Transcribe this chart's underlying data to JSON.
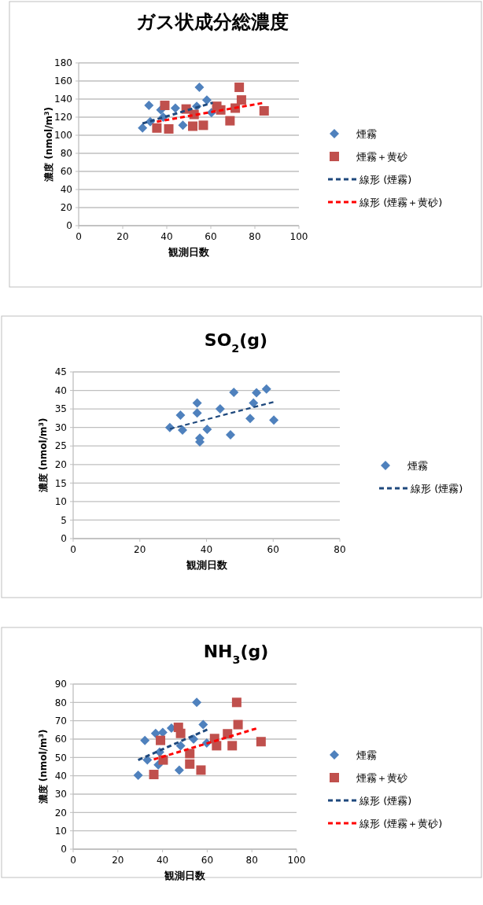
{
  "chart_data": [
    {
      "type": "scatter",
      "title": "ガス状成分総濃度",
      "xlabel": "観測日数",
      "ylabel": "濃度 (nmol/m$^{3}$)",
      "xlim": [
        0,
        100
      ],
      "xticks": [
        0,
        20,
        40,
        60,
        80,
        100
      ],
      "ylim": [
        0,
        180
      ],
      "yticks": [
        0,
        20,
        40,
        60,
        80,
        100,
        120,
        140,
        160,
        180
      ],
      "grid": "y",
      "legend": "right",
      "series": [
        {
          "name": "煙霧",
          "marker": "diamond",
          "color": "#4f81bd",
          "x": [
            29,
            31.9,
            32.5,
            37.3,
            38.4,
            43.9,
            47.3,
            53.6,
            54.8,
            58.2,
            60.3
          ],
          "values": [
            108,
            133,
            115,
            128,
            120,
            130,
            111,
            132,
            153,
            139,
            125
          ]
        },
        {
          "name": "煙霧＋黄砂",
          "marker": "square",
          "color": "#c0504d",
          "x": [
            39.1,
            35.5,
            40.9,
            48.8,
            51.8,
            52.4,
            56.6,
            62.7,
            64.5,
            68.7,
            71.1,
            72.9,
            73.9,
            84.2
          ],
          "values": [
            133,
            108,
            107,
            129,
            110,
            123,
            111,
            132,
            128,
            116,
            130,
            153,
            139,
            127
          ]
        },
        {
          "name": "線形 (煙霧)",
          "type": "line",
          "line_style": "dashed",
          "color": "#1f497d",
          "x": [
            29,
            60.9
          ],
          "values": [
            113,
            136
          ]
        },
        {
          "name": "線形 (煙霧＋黄砂)",
          "type": "line",
          "line_style": "dashed",
          "color": "#ff0000",
          "x": [
            35.5,
            84.4
          ],
          "values": [
            115,
            136
          ]
        }
      ]
    },
    {
      "type": "scatter",
      "title": "SO$_{2}$(g)",
      "xlabel": "観測日数",
      "ylabel": "濃度 (nmol/m$^{3}$)",
      "xlim": [
        0,
        80
      ],
      "xticks": [
        0,
        20,
        40,
        60,
        80
      ],
      "ylim": [
        0,
        45
      ],
      "yticks": [
        0,
        5,
        10,
        15,
        20,
        25,
        30,
        35,
        40,
        45
      ],
      "grid": "y",
      "legend": "right",
      "series": [
        {
          "name": "煙霧",
          "marker": "diamond",
          "color": "#4f81bd",
          "x": [
            29,
            32.2,
            32.8,
            37.2,
            37.2,
            38,
            38,
            40.2,
            44.1,
            47.2,
            48.2,
            53.1,
            54.1,
            55,
            58,
            60.2
          ],
          "values": [
            30,
            33.3,
            29.3,
            36.6,
            33.9,
            27.1,
            26.1,
            29.5,
            35,
            28,
            39.5,
            32.4,
            36.6,
            39.4,
            40.4,
            32
          ]
        },
        {
          "name": "線形 (煙霧)",
          "type": "line",
          "line_style": "dashed",
          "color": "#1f497d",
          "x": [
            29,
            60.2
          ],
          "values": [
            29.6,
            36.9
          ]
        }
      ]
    },
    {
      "type": "scatter",
      "title": "NH$_{3}$(g)",
      "xlabel": "観測日数",
      "ylabel": "濃度 (nmol/m$^{3}$)",
      "xlim": [
        0,
        100
      ],
      "xticks": [
        0,
        20,
        40,
        60,
        80,
        100
      ],
      "ylim": [
        0,
        90
      ],
      "yticks": [
        0,
        10,
        20,
        30,
        40,
        50,
        60,
        70,
        80,
        90
      ],
      "grid": "y",
      "legend": "right",
      "series": [
        {
          "name": "煙霧",
          "marker": "diamond",
          "color": "#4f81bd",
          "x": [
            29.1,
            32.1,
            33.2,
            36.9,
            38.1,
            38.7,
            40.1,
            44,
            47.5,
            48.1,
            53.9,
            55.3,
            58.2,
            59.8
          ],
          "values": [
            40.3,
            59.3,
            48.6,
            63.1,
            46,
            52.9,
            63.6,
            66,
            43.1,
            56.4,
            60,
            80,
            67.9,
            57.9
          ]
        },
        {
          "name": "煙霧＋黄砂",
          "marker": "square",
          "color": "#c0504d",
          "x": [
            39.1,
            36.1,
            40.3,
            47.1,
            48.1,
            52.2,
            52.2,
            57.2,
            63.3,
            64.2,
            69.1,
            71.2,
            73.2,
            73.8,
            84.1
          ],
          "values": [
            59.3,
            40.7,
            48.6,
            66.4,
            63.1,
            52.1,
            46.4,
            43.1,
            60.3,
            56.4,
            62.9,
            56.4,
            80,
            67.9,
            58.6
          ]
        },
        {
          "name": "線形 (煙霧)",
          "type": "line",
          "line_style": "dashed",
          "color": "#1f497d",
          "x": [
            29.1,
            60.4
          ],
          "values": [
            48.6,
            65.4
          ]
        },
        {
          "name": "線形 (煙霧＋黄砂)",
          "type": "line",
          "line_style": "dashed",
          "color": "#ff0000",
          "x": [
            36.1,
            82.6
          ],
          "values": [
            48.9,
            66
          ]
        }
      ]
    }
  ]
}
